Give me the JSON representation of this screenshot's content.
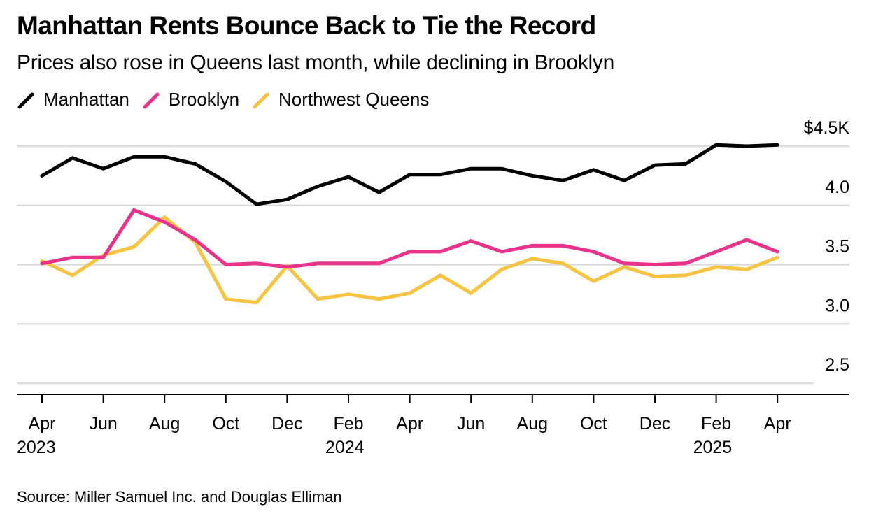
{
  "chart_data": {
    "type": "line",
    "title": "Manhattan Rents Bounce Back to Tie the Record",
    "subtitle": "Prices also rose in Queens last month, while declining in Brooklyn",
    "xlabel": "",
    "ylabel": "",
    "source": "Source: Miller Samuel Inc. and Douglas Elliman",
    "x": [
      "Apr 2023",
      "May 2023",
      "Jun 2023",
      "Jul 2023",
      "Aug 2023",
      "Sep 2023",
      "Oct 2023",
      "Nov 2023",
      "Dec 2023",
      "Jan 2024",
      "Feb 2024",
      "Mar 2024",
      "Apr 2024",
      "May 2024",
      "Jun 2024",
      "Jul 2024",
      "Aug 2024",
      "Sep 2024",
      "Oct 2024",
      "Nov 2024",
      "Dec 2024",
      "Jan 2025",
      "Feb 2025",
      "Mar 2025",
      "Apr 2025"
    ],
    "series": [
      {
        "name": "Manhattan",
        "color": "#000000",
        "values": [
          4.25,
          4.4,
          4.31,
          4.41,
          4.41,
          4.35,
          4.2,
          4.01,
          4.05,
          4.16,
          4.24,
          4.11,
          4.26,
          4.26,
          4.31,
          4.31,
          4.25,
          4.21,
          4.3,
          4.21,
          4.34,
          4.35,
          4.51,
          4.5,
          4.51
        ]
      },
      {
        "name": "Brooklyn",
        "color": "#e9338a",
        "values": [
          3.51,
          3.56,
          3.56,
          3.96,
          3.86,
          3.71,
          3.5,
          3.51,
          3.48,
          3.51,
          3.51,
          3.51,
          3.61,
          3.61,
          3.7,
          3.61,
          3.66,
          3.66,
          3.61,
          3.51,
          3.5,
          3.51,
          3.61,
          3.71,
          3.61
        ]
      },
      {
        "name": "Northwest Queens",
        "color": "#f6c342",
        "values": [
          3.53,
          3.41,
          3.58,
          3.65,
          3.9,
          3.69,
          3.21,
          3.18,
          3.49,
          3.21,
          3.25,
          3.21,
          3.26,
          3.41,
          3.26,
          3.46,
          3.55,
          3.51,
          3.36,
          3.48,
          3.4,
          3.41,
          3.48,
          3.46,
          3.56
        ]
      }
    ],
    "ylim": [
      2.5,
      4.5
    ],
    "yticks": [
      {
        "value": 4.5,
        "label": "$4.5K"
      },
      {
        "value": 4.0,
        "label": "4.0"
      },
      {
        "value": 3.5,
        "label": "3.5"
      },
      {
        "value": 3.0,
        "label": "3.0"
      },
      {
        "value": 2.5,
        "label": "2.5"
      }
    ],
    "xticks": [
      {
        "index": 0,
        "month": "Apr",
        "year": "2023"
      },
      {
        "index": 2,
        "month": "Jun",
        "year": ""
      },
      {
        "index": 4,
        "month": "Aug",
        "year": ""
      },
      {
        "index": 6,
        "month": "Oct",
        "year": ""
      },
      {
        "index": 8,
        "month": "Dec",
        "year": ""
      },
      {
        "index": 10,
        "month": "Feb",
        "year": "2024"
      },
      {
        "index": 12,
        "month": "Apr",
        "year": ""
      },
      {
        "index": 14,
        "month": "Jun",
        "year": ""
      },
      {
        "index": 16,
        "month": "Aug",
        "year": ""
      },
      {
        "index": 18,
        "month": "Oct",
        "year": ""
      },
      {
        "index": 20,
        "month": "Dec",
        "year": ""
      },
      {
        "index": 22,
        "month": "Feb",
        "year": "2025"
      },
      {
        "index": 24,
        "month": "Apr",
        "year": ""
      }
    ],
    "grid": true,
    "legend_position": "top-left"
  },
  "legend": [
    {
      "label": "Manhattan",
      "color": "#000000"
    },
    {
      "label": "Brooklyn",
      "color": "#e9338a"
    },
    {
      "label": "Northwest Queens",
      "color": "#f6c342"
    }
  ]
}
